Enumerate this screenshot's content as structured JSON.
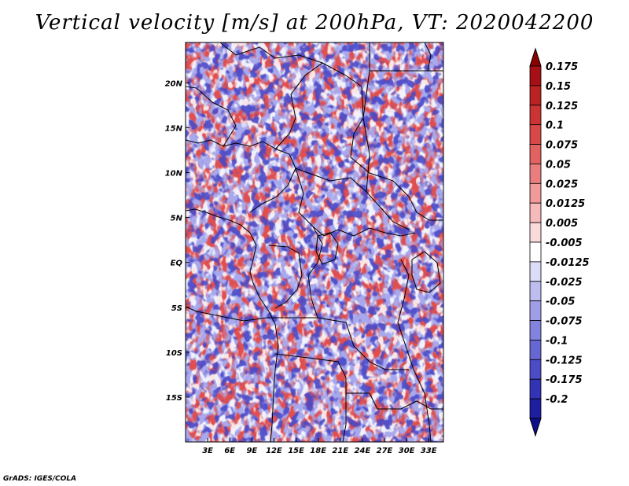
{
  "title": "Vertical velocity [m/s] at 200hPa, VT: 2020042200",
  "credit": "GrADS: IGES/COLA",
  "map": {
    "lon_range": [
      0,
      35
    ],
    "lat_range": [
      -20,
      24.5
    ],
    "lon_ticks": [
      {
        "value": 3,
        "label": "3E"
      },
      {
        "value": 6,
        "label": "6E"
      },
      {
        "value": 9,
        "label": "9E"
      },
      {
        "value": 12,
        "label": "12E"
      },
      {
        "value": 15,
        "label": "15E"
      },
      {
        "value": 18,
        "label": "18E"
      },
      {
        "value": 21,
        "label": "21E"
      },
      {
        "value": 24,
        "label": "24E"
      },
      {
        "value": 27,
        "label": "27E"
      },
      {
        "value": 30,
        "label": "30E"
      },
      {
        "value": 33,
        "label": "33E"
      }
    ],
    "lat_ticks": [
      {
        "value": 20,
        "label": "20N"
      },
      {
        "value": 15,
        "label": "15N"
      },
      {
        "value": 10,
        "label": "10N"
      },
      {
        "value": 5,
        "label": "5N"
      },
      {
        "value": 0,
        "label": "EQ"
      },
      {
        "value": -5,
        "label": "5S"
      },
      {
        "value": -10,
        "label": "10S"
      },
      {
        "value": -15,
        "label": "15S"
      }
    ]
  },
  "colorbar": {
    "levels": [
      {
        "label": "0.175",
        "color": "#a50f15"
      },
      {
        "label": "0.15",
        "color": "#bb2222"
      },
      {
        "label": "0.125",
        "color": "#cc3333"
      },
      {
        "label": "0.1",
        "color": "#d94848"
      },
      {
        "label": "0.075",
        "color": "#e26262"
      },
      {
        "label": "0.05",
        "color": "#ea7e7e"
      },
      {
        "label": "0.025",
        "color": "#f29a9a"
      },
      {
        "label": "0.0125",
        "color": "#f7baba"
      },
      {
        "label": "0.005",
        "color": "#fbdada"
      },
      {
        "label": "-0.005",
        "color": "#ffffff"
      },
      {
        "label": "-0.0125",
        "color": "#dcdcf8"
      },
      {
        "label": "-0.025",
        "color": "#bdbdf0"
      },
      {
        "label": "-0.05",
        "color": "#9f9fe8"
      },
      {
        "label": "-0.075",
        "color": "#8282df"
      },
      {
        "label": "-0.1",
        "color": "#6767d4"
      },
      {
        "label": "-0.125",
        "color": "#4c4cc6"
      },
      {
        "label": "-0.175",
        "color": "#3333b5"
      },
      {
        "label": "-0.2",
        "color": "#1e1ea0"
      }
    ],
    "top_color": "#8b0000",
    "bottom_color": "#0e0e8a"
  }
}
